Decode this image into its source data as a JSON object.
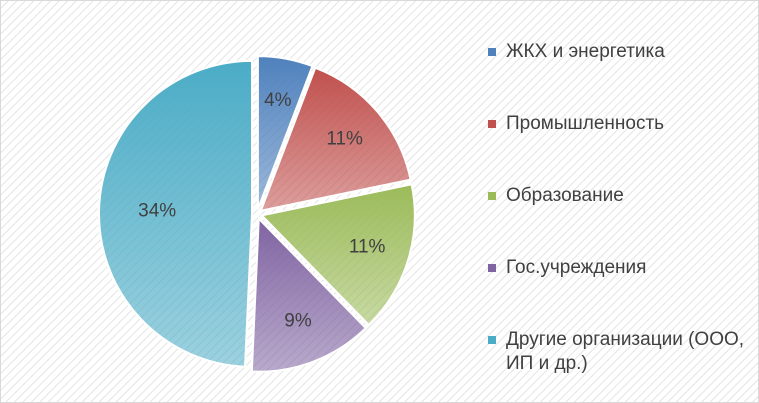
{
  "chart_data": {
    "type": "pie",
    "categories": [
      "ЖКХ и энергетика",
      "Промышленность",
      "Образование",
      "Гос.учреждения",
      "Другие организации (ООО, ИП и др.)"
    ],
    "values": [
      4,
      11,
      11,
      9,
      34
    ],
    "value_labels": [
      "4%",
      "11%",
      "11%",
      "9%",
      "34%"
    ],
    "colors": [
      "#4f81bd",
      "#c0504d",
      "#9bbb59",
      "#8064a2",
      "#4bacc6"
    ],
    "legend": "right"
  }
}
